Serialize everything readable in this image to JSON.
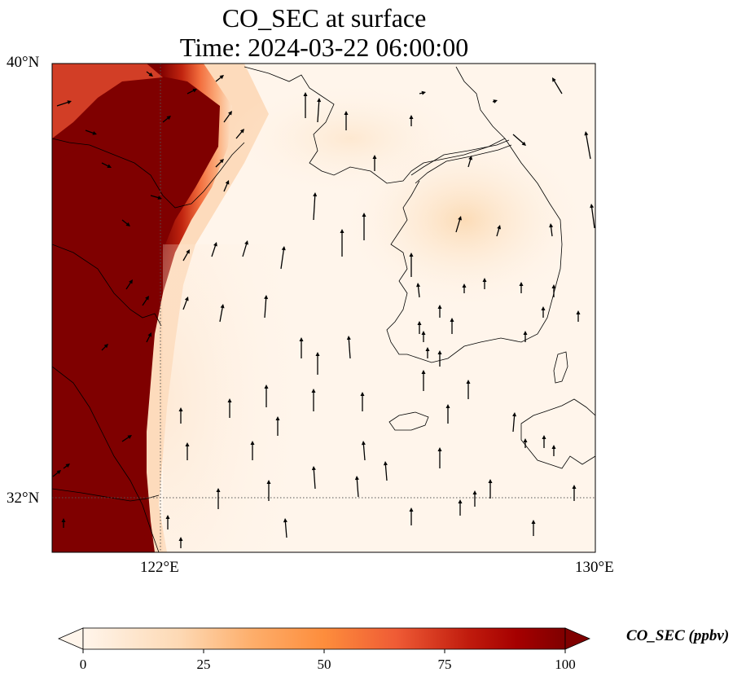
{
  "title": {
    "line1": "CO_SEC at surface",
    "line2": "Time: 2024-03-22 06:00:00"
  },
  "map": {
    "lat_range": [
      30.9,
      40.0
    ],
    "lon_range": [
      120.0,
      130.0
    ],
    "lat_ticks": [
      {
        "value": 40,
        "label": "40°N"
      },
      {
        "value": 32,
        "label": "32°N"
      }
    ],
    "lon_ticks": [
      {
        "value": 122,
        "label": "122°E"
      },
      {
        "value": 130,
        "label": "130°E"
      }
    ],
    "gridlines": "dotted"
  },
  "colorbar": {
    "label": "CO_SEC (ppbv)",
    "ticks": [
      "0",
      "25",
      "50",
      "75",
      "100"
    ],
    "min": 0,
    "max": 100,
    "colormap": [
      "#fff5eb",
      "#fdd0a2",
      "#fd8d3c",
      "#d94801",
      "#a50f15",
      "#7f0000"
    ],
    "extend": "both"
  }
}
